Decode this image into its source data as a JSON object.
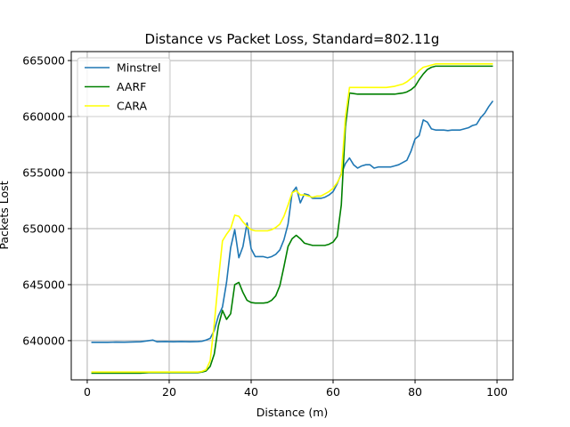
{
  "chart_data": {
    "type": "line",
    "title": "Distance vs Packet Loss, Standard=802.11g",
    "xlabel": "Distance (m)",
    "ylabel": "Packets Lost",
    "xlim": [
      -3.9,
      103.9
    ],
    "ylim": [
      636500,
      665800
    ],
    "xticks": [
      0,
      20,
      40,
      60,
      80,
      100
    ],
    "yticks": [
      640000,
      645000,
      650000,
      655000,
      660000,
      665000
    ],
    "grid": true,
    "legend_position": "top-left",
    "x": [
      1,
      3,
      5,
      7,
      9,
      11,
      13,
      15,
      16,
      17,
      19,
      21,
      23,
      25,
      27,
      28,
      29,
      30,
      31,
      32,
      33,
      34,
      35,
      36,
      37,
      38,
      39,
      40,
      41,
      42,
      43,
      44,
      45,
      46,
      47,
      48,
      49,
      50,
      51,
      52,
      53,
      54,
      55,
      56,
      57,
      58,
      59,
      60,
      61,
      62,
      63,
      64,
      65,
      66,
      67,
      68,
      69,
      70,
      71,
      72,
      73,
      74,
      75,
      76,
      77,
      78,
      79,
      80,
      81,
      82,
      83,
      84,
      85,
      86,
      87,
      88,
      89,
      90,
      91,
      92,
      93,
      94,
      95,
      96,
      97,
      98,
      99
    ],
    "series": [
      {
        "name": "Minstrel",
        "color": "#1f77b4",
        "values": [
          639850,
          639850,
          639850,
          639870,
          639860,
          639880,
          639900,
          640000,
          640050,
          639900,
          639920,
          639900,
          639920,
          639900,
          639920,
          639950,
          640050,
          640200,
          640900,
          642200,
          643000,
          645200,
          648300,
          649900,
          647400,
          648400,
          650500,
          648200,
          647500,
          647500,
          647500,
          647400,
          647500,
          647700,
          648100,
          649000,
          650400,
          653200,
          653700,
          652300,
          653100,
          653000,
          652700,
          652700,
          652700,
          652800,
          653000,
          653300,
          654000,
          654900,
          655800,
          656300,
          655700,
          655400,
          655600,
          655700,
          655700,
          655400,
          655500,
          655500,
          655500,
          655500,
          655600,
          655700,
          655900,
          656100,
          656900,
          658000,
          658300,
          659700,
          659500,
          658900,
          658800,
          658800,
          658800,
          658750,
          658800,
          658800,
          658800,
          658900,
          659000,
          659200,
          659300,
          659900,
          660300,
          660900,
          661400
        ]
      },
      {
        "name": "AARF",
        "color": "#008000",
        "values": [
          637100,
          637100,
          637100,
          637100,
          637100,
          637100,
          637100,
          637150,
          637150,
          637150,
          637150,
          637150,
          637150,
          637150,
          637150,
          637200,
          637300,
          637700,
          638800,
          641300,
          642700,
          641900,
          642400,
          645000,
          645200,
          644300,
          643600,
          643400,
          643350,
          643350,
          643350,
          643400,
          643600,
          644000,
          644900,
          646600,
          648400,
          649100,
          649400,
          649100,
          648700,
          648600,
          648500,
          648500,
          648500,
          648500,
          648600,
          648800,
          649300,
          652100,
          659100,
          662100,
          662050,
          662000,
          662000,
          662000,
          662000,
          662000,
          662000,
          662000,
          662000,
          662000,
          662000,
          662050,
          662100,
          662200,
          662400,
          662700,
          663300,
          663800,
          664200,
          664400,
          664500,
          664500,
          664500,
          664500,
          664500,
          664500,
          664500,
          664500,
          664500,
          664500,
          664500,
          664500,
          664500,
          664500,
          664500
        ]
      },
      {
        "name": "CARA",
        "color": "#ffff00",
        "values": [
          637200,
          637200,
          637200,
          637200,
          637200,
          637200,
          637200,
          637200,
          637200,
          637200,
          637200,
          637200,
          637200,
          637200,
          637200,
          637250,
          637400,
          638200,
          641500,
          645400,
          648900,
          649500,
          650000,
          651200,
          651100,
          650600,
          650200,
          649900,
          649800,
          649800,
          649800,
          649800,
          649900,
          650100,
          650400,
          651100,
          652100,
          653200,
          653400,
          653000,
          653000,
          652900,
          652800,
          652900,
          652900,
          653100,
          653300,
          653600,
          654100,
          654800,
          659900,
          662600,
          662600,
          662600,
          662600,
          662600,
          662600,
          662600,
          662600,
          662600,
          662600,
          662650,
          662700,
          662800,
          662900,
          663100,
          663400,
          663700,
          664100,
          664400,
          664500,
          664600,
          664700,
          664700,
          664700,
          664700,
          664700,
          664700,
          664700,
          664700,
          664700,
          664700,
          664700,
          664700,
          664700,
          664700,
          664700
        ]
      }
    ]
  }
}
